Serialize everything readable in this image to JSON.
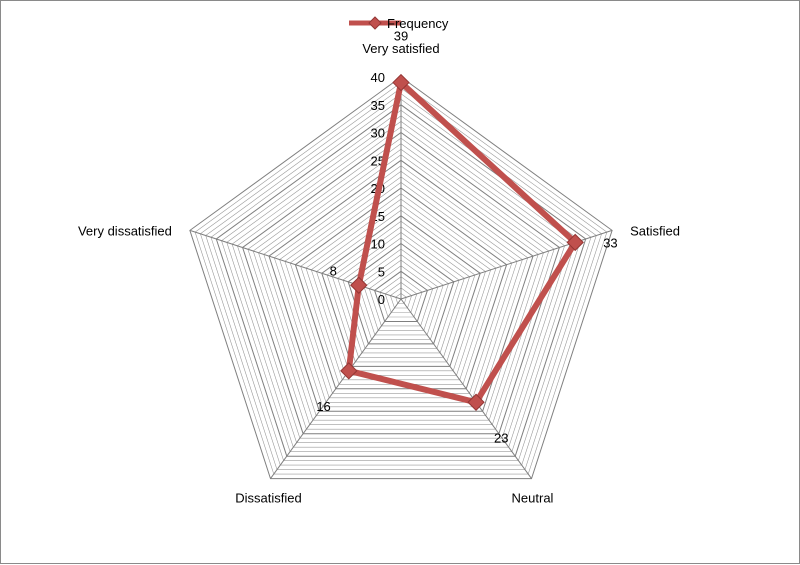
{
  "chart_data": {
    "type": "radar",
    "title": "",
    "categories": [
      "Very satisfied",
      "Satisfied",
      "Neutral",
      "Dissatisfied",
      "Very dissatisfied"
    ],
    "series": [
      {
        "name": "Frequency",
        "values": [
          39,
          33,
          23,
          16,
          8
        ]
      }
    ],
    "radial_range": [
      0,
      40
    ],
    "radial_ticks": [
      "0",
      "5",
      "10",
      "15",
      "20",
      "25",
      "30",
      "35",
      "40"
    ],
    "data_labels": [
      "39",
      "33",
      "23",
      "16",
      "8"
    ],
    "gridlines": true,
    "legend_position": "top",
    "colors": {
      "series": "#c0504d",
      "series_dark": "#943634",
      "grid": "#8c8c8c"
    }
  }
}
